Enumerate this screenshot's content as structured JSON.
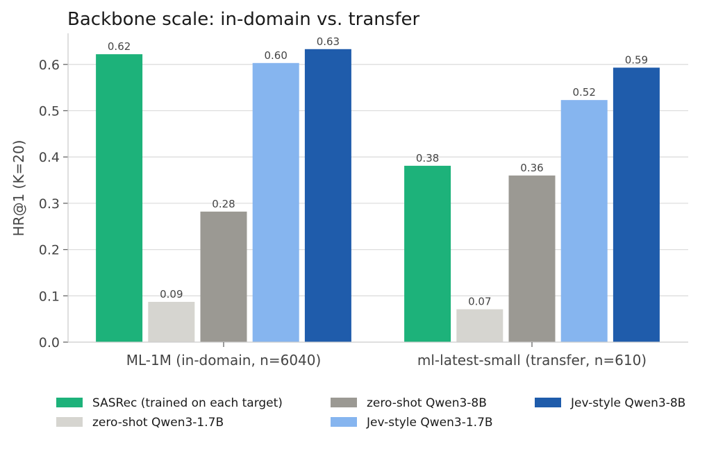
{
  "chart_data": {
    "type": "bar",
    "title": "Backbone scale: in-domain vs. transfer",
    "xlabel": "",
    "ylabel": "HR@1 (K=20)",
    "ylim": [
      0,
      0.66
    ],
    "yticks": [
      0.0,
      0.1,
      0.2,
      0.3,
      0.4,
      0.5,
      0.6
    ],
    "ytick_labels": [
      "0.0",
      "0.1",
      "0.2",
      "0.3",
      "0.4",
      "0.5",
      "0.6"
    ],
    "grid": true,
    "legend_position": "bottom",
    "categories": [
      "ML-1M (in-domain, n=6040)",
      "ml-latest-small (transfer, n=610)"
    ],
    "series": [
      {
        "name": "SASRec (trained on each target)",
        "color": "#1db27a",
        "values": [
          0.622,
          0.381
        ],
        "labels": [
          "0.62",
          "0.38"
        ]
      },
      {
        "name": "zero-shot Qwen3-1.7B",
        "color": "#d6d5d0",
        "values": [
          0.087,
          0.071
        ],
        "labels": [
          "0.09",
          "0.07"
        ]
      },
      {
        "name": "zero-shot Qwen3-8B",
        "color": "#9b9993",
        "values": [
          0.282,
          0.36
        ],
        "labels": [
          "0.28",
          "0.36"
        ]
      },
      {
        "name": "Jev-style Qwen3-1.7B",
        "color": "#86b5ef",
        "values": [
          0.603,
          0.523
        ],
        "labels": [
          "0.60",
          "0.52"
        ]
      },
      {
        "name": "Jev-style Qwen3-8B",
        "color": "#1f5cab",
        "values": [
          0.633,
          0.593
        ],
        "labels": [
          "0.63",
          "0.59"
        ]
      }
    ]
  }
}
